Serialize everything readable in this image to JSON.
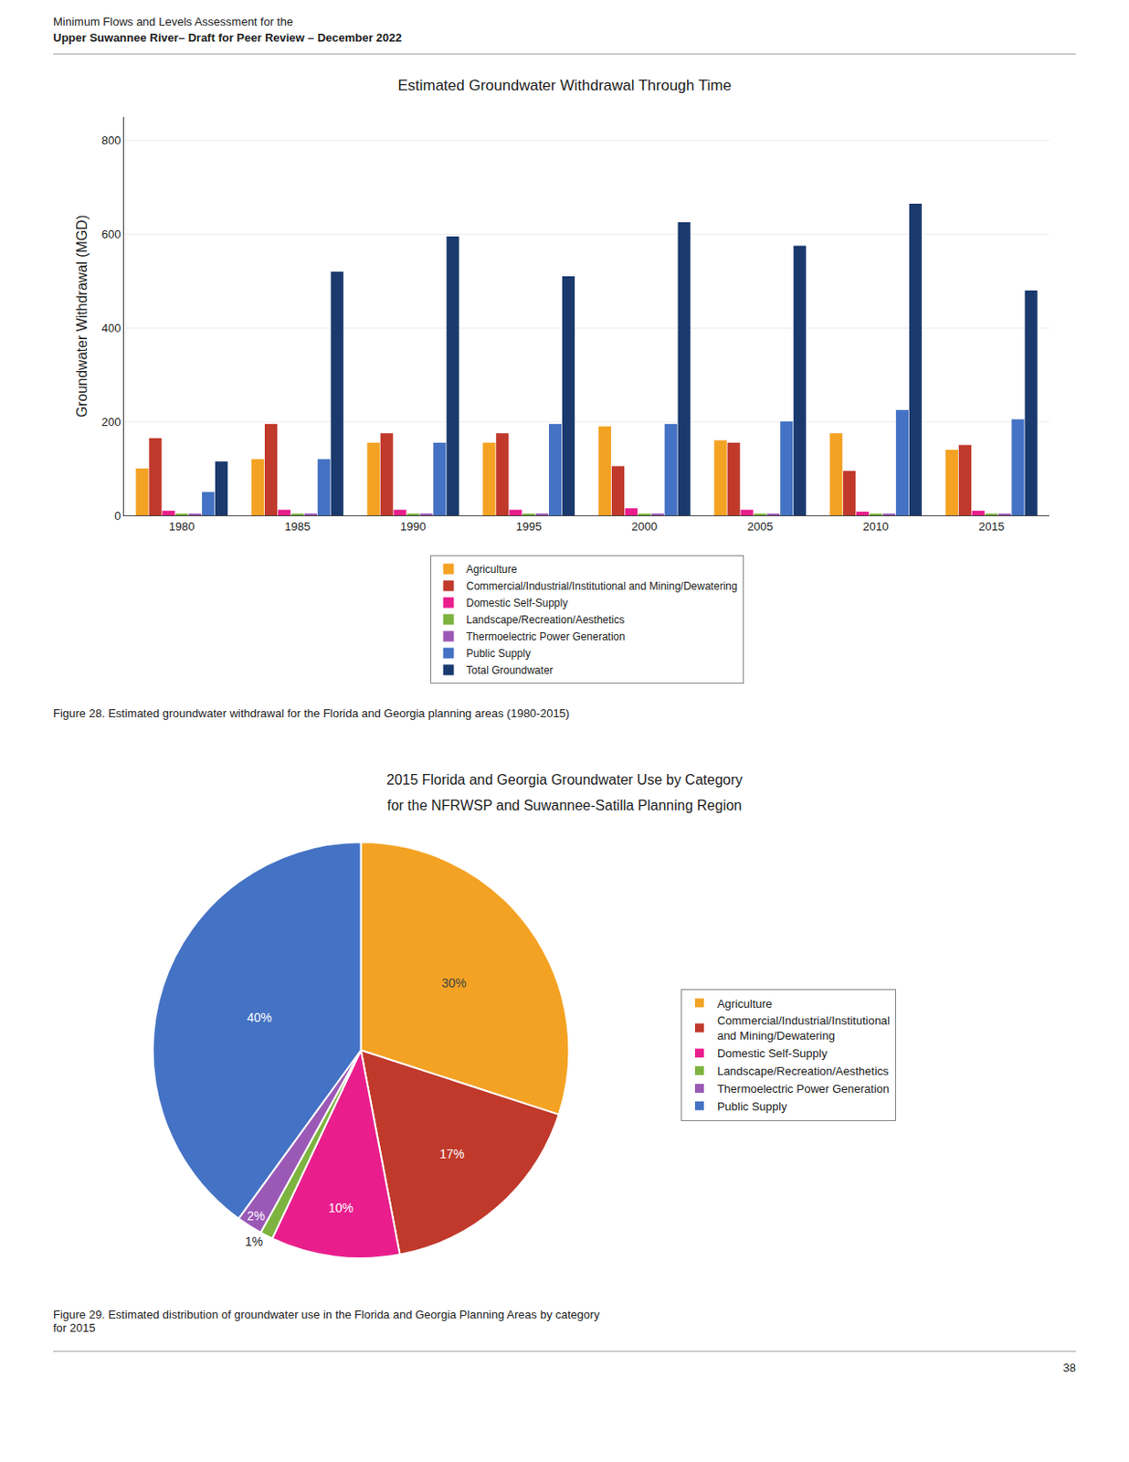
{
  "header": [
    "Minimum Flows and Levels Assessment for the",
    "Upper Suwannee River– Draft for Peer Review – December 2022"
  ],
  "page_number": "38",
  "chart_data": [
    {
      "type": "bar",
      "title": "Estimated Groundwater Withdrawal Through Time",
      "ylabel": "Groundwater Withdrawal (MGD)",
      "categories": [
        "1980",
        "1985",
        "1990",
        "1995",
        "2000",
        "2005",
        "2010",
        "2015"
      ],
      "series": [
        {
          "name": "Agriculture",
          "color": "#f4a223",
          "values": [
            100,
            120,
            155,
            155,
            190,
            160,
            175,
            140
          ]
        },
        {
          "name": "Commercial/Industrial/Institutional and Mining/Dewatering",
          "color": "#c0392b",
          "values": [
            165,
            195,
            175,
            175,
            105,
            155,
            95,
            150
          ]
        },
        {
          "name": "Domestic Self-Supply",
          "color": "#e91e8c",
          "values": [
            10,
            12,
            12,
            12,
            15,
            12,
            8,
            10
          ]
        },
        {
          "name": "Landscape/Recreation/Aesthetics",
          "color": "#7db33f",
          "values": [
            2,
            3,
            3,
            3,
            3,
            3,
            2,
            2
          ]
        },
        {
          "name": "Thermoelectric Power Generation",
          "color": "#9b59b6",
          "values": [
            3,
            4,
            4,
            4,
            4,
            3,
            3,
            3
          ]
        },
        {
          "name": "Public Supply",
          "color": "#4472c4",
          "values": [
            50,
            120,
            155,
            195,
            195,
            200,
            225,
            205
          ]
        },
        {
          "name": "Total Groundwater",
          "color": "#1a3a6e",
          "values": [
            115,
            520,
            595,
            510,
            625,
            575,
            665,
            480
          ]
        }
      ],
      "ylim": [
        0,
        850
      ],
      "yticks": [
        0,
        200,
        400,
        600,
        800
      ],
      "grid": true,
      "legend": "bottom",
      "caption": "Figure 28. Estimated groundwater withdrawal for the Florida and Georgia planning areas (1980-2015)"
    },
    {
      "type": "pie",
      "title": "2015 Florida and Georgia Groundwater Use by Category",
      "subtitle": "for the NFRWSP and Suwannee-Satilla Planning Region",
      "categories": [
        "Agriculture",
        "Commercial/Industrial/Institutional\nand Mining/Dewatering",
        "Domestic Self-Supply",
        "Landscape/Recreation/Aesthetics",
        "Thermoelectric Power Generation",
        "Public Supply"
      ],
      "values": [
        30,
        17,
        10,
        1,
        2,
        40
      ],
      "value_labels": [
        "30%",
        "17%",
        "10%",
        "1%",
        "2%",
        "40%"
      ],
      "colors": [
        "#f4a223",
        "#c0392b",
        "#e91e8c",
        "#7db33f",
        "#9b59b6",
        "#4472c4"
      ],
      "legend": "right",
      "caption": "Figure 29. Estimated distribution of groundwater use in the Florida and Georgia Planning Areas by category\nfor 2015"
    }
  ]
}
